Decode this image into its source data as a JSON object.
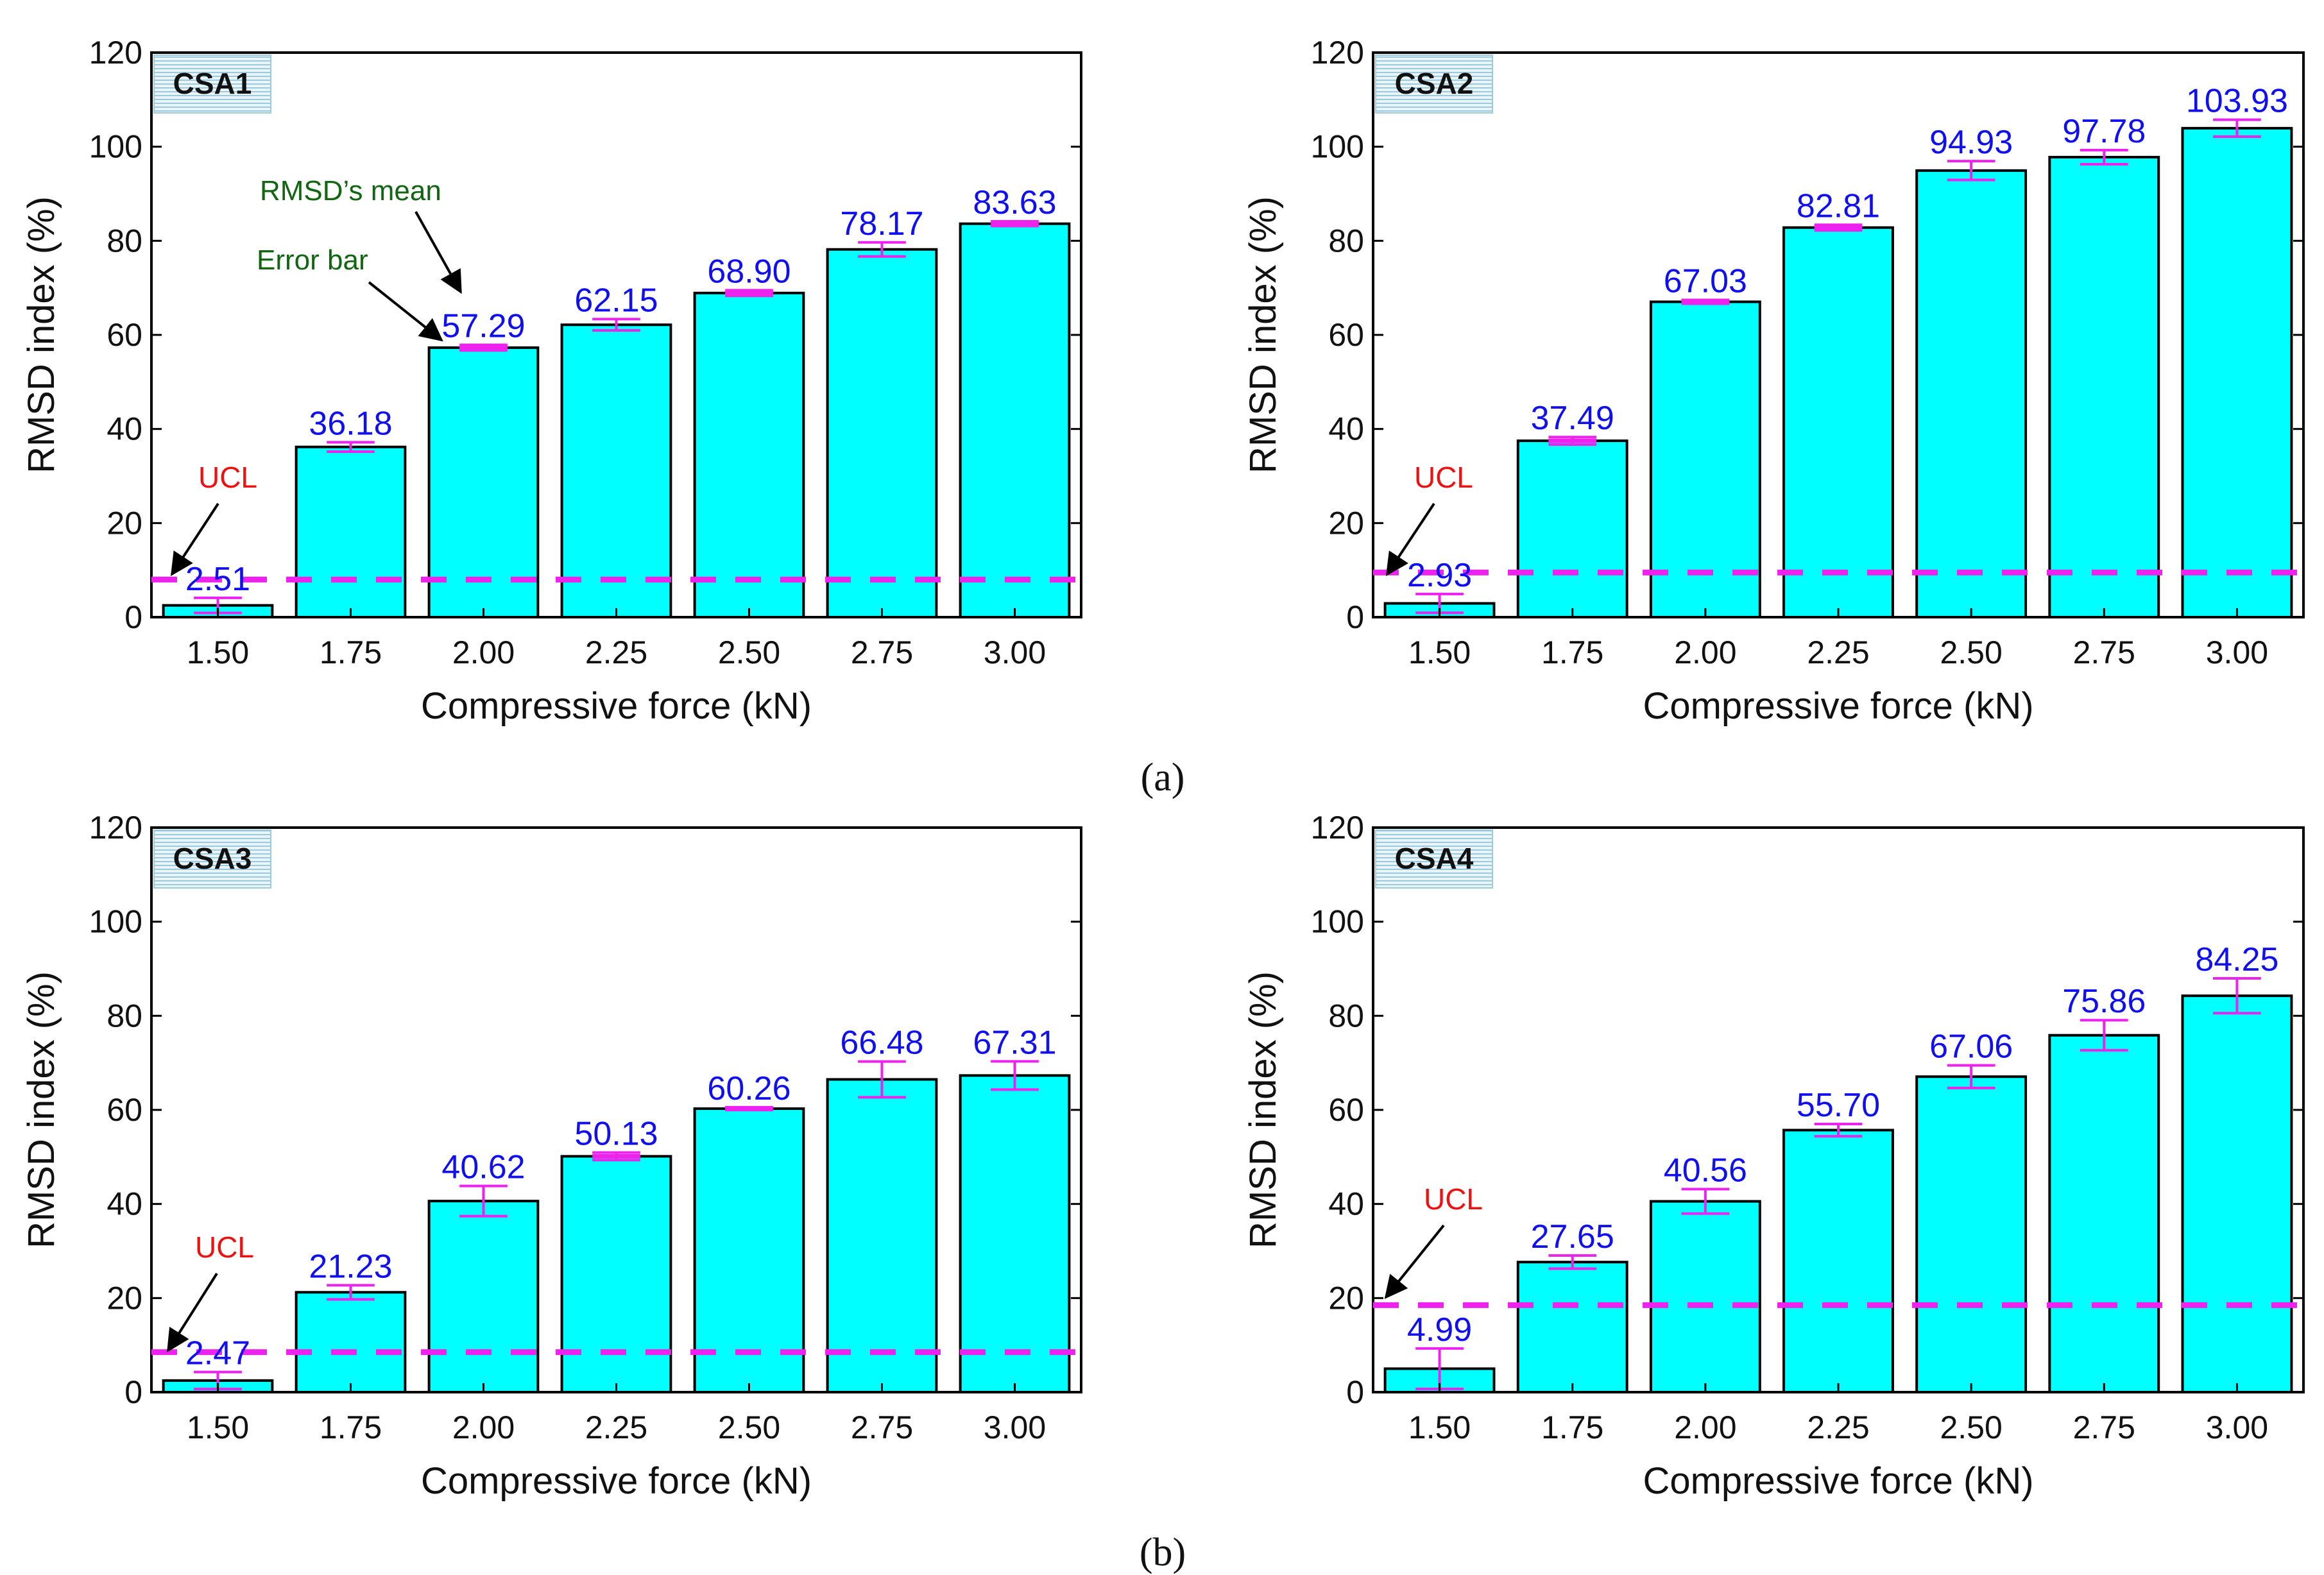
{
  "colors": {
    "bar_fill": "#00ffff",
    "bar_stroke": "#000000",
    "ucl_line": "#ee22ee",
    "error_bar": "#ee22ee",
    "value_text": "#1010ee",
    "ucl_text": "#ee1111",
    "annotation_text": "#116611",
    "tag_fill": "#dff0f5"
  },
  "figure": {
    "sublabel_a": "(a)",
    "sublabel_b": "(b)",
    "annotations": {
      "mean": "RMSD’s mean",
      "error": "Error bar"
    }
  },
  "chart_data": [
    {
      "type": "bar",
      "panel": "CSA1",
      "categories": [
        "1.50",
        "1.75",
        "2.00",
        "2.25",
        "2.50",
        "2.75",
        "3.00"
      ],
      "values": [
        2.51,
        36.18,
        57.29,
        62.15,
        68.9,
        78.17,
        83.63
      ],
      "value_labels": [
        "2.51",
        "36.18",
        "57.29",
        "62.15",
        "68.90",
        "78.17",
        "83.63"
      ],
      "errors": [
        1.6,
        1.0,
        0.6,
        1.2,
        0.6,
        1.5,
        0.5
      ],
      "ucl": 8.0,
      "ucl_label": "UCL",
      "xlabel": "Compressive force (kN)",
      "ylabel": "RMSD index (%)",
      "ylim": [
        0,
        120
      ],
      "yticks": [
        "0",
        "20",
        "40",
        "60",
        "80",
        "100",
        "120"
      ],
      "grid": false
    },
    {
      "type": "bar",
      "panel": "CSA2",
      "categories": [
        "1.50",
        "1.75",
        "2.00",
        "2.25",
        "2.50",
        "2.75",
        "3.00"
      ],
      "values": [
        2.93,
        37.49,
        67.03,
        82.81,
        94.93,
        97.78,
        103.93
      ],
      "value_labels": [
        "2.93",
        "37.49",
        "67.03",
        "82.81",
        "94.93",
        "97.78",
        "103.93"
      ],
      "errors": [
        2.0,
        0.8,
        0.4,
        0.6,
        2.0,
        1.5,
        1.8
      ],
      "ucl": 9.5,
      "ucl_label": "UCL",
      "xlabel": "Compressive force (kN)",
      "ylabel": "RMSD index (%)",
      "ylim": [
        0,
        120
      ],
      "yticks": [
        "0",
        "20",
        "40",
        "60",
        "80",
        "100",
        "120"
      ],
      "grid": false
    },
    {
      "type": "bar",
      "panel": "CSA3",
      "categories": [
        "1.50",
        "1.75",
        "2.00",
        "2.25",
        "2.50",
        "2.75",
        "3.00"
      ],
      "values": [
        2.47,
        21.23,
        40.62,
        50.13,
        60.26,
        66.48,
        67.31
      ],
      "value_labels": [
        "2.47",
        "21.23",
        "40.62",
        "50.13",
        "60.26",
        "66.48",
        "67.31"
      ],
      "errors": [
        1.8,
        1.5,
        3.2,
        0.8,
        0.3,
        3.8,
        3.0
      ],
      "ucl": 8.5,
      "ucl_label": "UCL",
      "xlabel": "Compressive force (kN)",
      "ylabel": "RMSD index (%)",
      "ylim": [
        0,
        120
      ],
      "yticks": [
        "0",
        "20",
        "40",
        "60",
        "80",
        "100",
        "120"
      ],
      "grid": false
    },
    {
      "type": "bar",
      "panel": "CSA4",
      "categories": [
        "1.50",
        "1.75",
        "2.00",
        "2.25",
        "2.50",
        "2.75",
        "3.00"
      ],
      "values": [
        4.99,
        27.65,
        40.56,
        55.7,
        67.06,
        75.86,
        84.25
      ],
      "value_labels": [
        "4.99",
        "27.65",
        "40.56",
        "55.70",
        "67.06",
        "75.86",
        "84.25"
      ],
      "errors": [
        4.3,
        1.4,
        2.6,
        1.3,
        2.4,
        3.2,
        3.7
      ],
      "ucl": 18.5,
      "ucl_label": "UCL",
      "xlabel": "Compressive force (kN)",
      "ylabel": "RMSD index (%)",
      "ylim": [
        0,
        120
      ],
      "yticks": [
        "0",
        "20",
        "40",
        "60",
        "80",
        "100",
        "120"
      ],
      "grid": false
    }
  ]
}
